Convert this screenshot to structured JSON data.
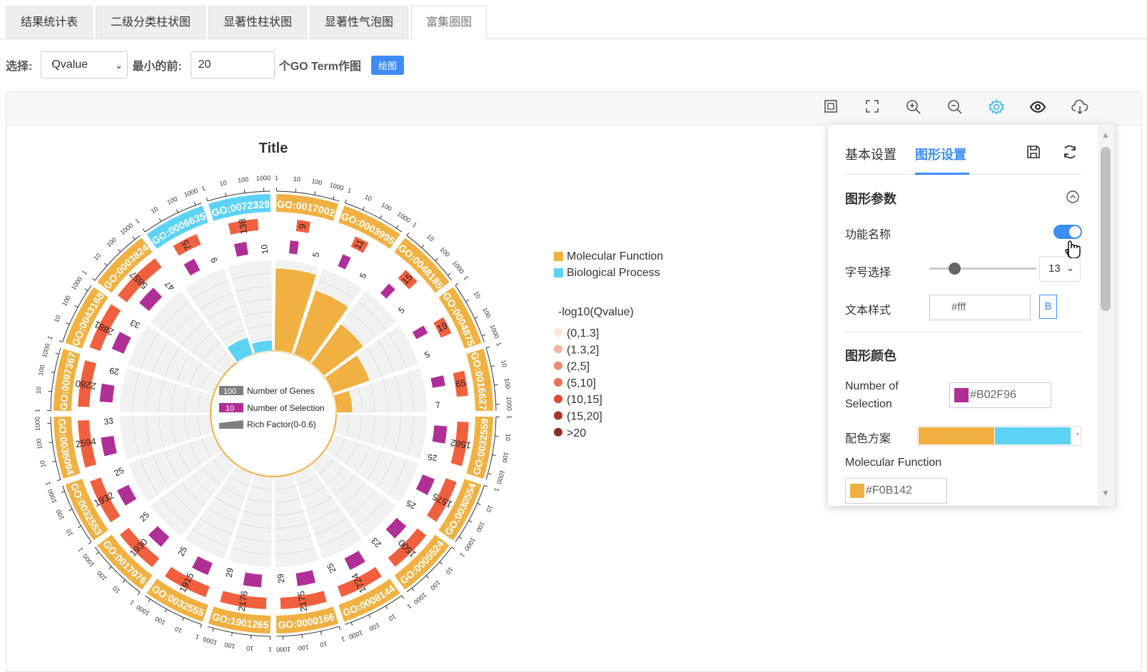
{
  "tabs": [
    "结果统计表",
    "二级分类柱状图",
    "显著性柱状图",
    "显著性气泡图",
    "富集圈图"
  ],
  "active_tab": 4,
  "controls": {
    "select_label": "选择:",
    "select_value": "Qvalue",
    "min_label": "最小的前:",
    "min_value": "20",
    "suffix": "个GO Term作图",
    "draw_button": "绘图"
  },
  "toolbar_icons": [
    "frame-icon",
    "fullscreen-icon",
    "zoom-in-icon",
    "zoom-out-icon",
    "settings-gear-icon",
    "eye-icon",
    "cloud-download-icon"
  ],
  "settings": {
    "tab_basic": "基本设置",
    "tab_graph": "图形设置",
    "section_params": "图形参数",
    "label_name": "功能名称",
    "name_toggle": true,
    "label_font": "字号选择",
    "font_size": "13",
    "label_textstyle": "文本样式",
    "text_color": "#fff",
    "bold_label": "B",
    "section_colors": "图形颜色",
    "label_selection": "Number of Selection",
    "selection_color": "#B02F96",
    "label_scheme": "配色方案",
    "scheme_colors": [
      "#F0B142",
      "#5CD3F5"
    ],
    "label_mf": "Molecular Function",
    "mf_color": "#F0B142"
  },
  "chart_data": {
    "type": "circos",
    "title": "Title",
    "terms": [
      {
        "id": "GO:0017002",
        "cat": "MF",
        "genes": 9,
        "sel": 5,
        "rich": 0.55
      },
      {
        "id": "GO:0003995",
        "cat": "MF",
        "genes": 11,
        "sel": 5,
        "rich": 0.45
      },
      {
        "id": "GO:0048185",
        "cat": "MF",
        "genes": 15,
        "sel": 5,
        "rich": 0.33
      },
      {
        "id": "GO:0004875",
        "cat": "MF",
        "genes": 19,
        "sel": 5,
        "rich": 0.26
      },
      {
        "id": "GO:0016627",
        "cat": "MF",
        "genes": 65,
        "sel": 7,
        "rich": 0.11
      },
      {
        "id": "GO:0032559",
        "cat": "MF",
        "genes": 1562,
        "sel": 25,
        "rich": 0.016
      },
      {
        "id": "GO:0030554",
        "cat": "MF",
        "genes": 1575,
        "sel": 25,
        "rich": 0.016
      },
      {
        "id": "GO:0005524",
        "cat": "MF",
        "genes": 1500,
        "sel": 23,
        "rich": 0.015
      },
      {
        "id": "GO:0008144",
        "cat": "MF",
        "genes": 1724,
        "sel": 25,
        "rich": 0.015
      },
      {
        "id": "GO:0000166",
        "cat": "MF",
        "genes": 2175,
        "sel": 29,
        "rich": 0.013
      },
      {
        "id": "GO:1901265",
        "cat": "MF",
        "genes": 2176,
        "sel": 29,
        "rich": 0.013
      },
      {
        "id": "GO:0032555",
        "cat": "MF",
        "genes": 1915,
        "sel": 25,
        "rich": 0.013
      },
      {
        "id": "GO:0017076",
        "cat": "MF",
        "genes": 1930,
        "sel": 25,
        "rich": 0.013
      },
      {
        "id": "GO:0032553",
        "cat": "MF",
        "genes": 1932,
        "sel": 25,
        "rich": 0.013
      },
      {
        "id": "GO:0036094",
        "cat": "MF",
        "genes": 2594,
        "sel": 33,
        "rich": 0.013
      },
      {
        "id": "GO:0097367",
        "cat": "MF",
        "genes": 2280,
        "sel": 29,
        "rich": 0.013
      },
      {
        "id": "GO:0043168",
        "cat": "MF",
        "genes": 2881,
        "sel": 33,
        "rich": 0.011
      },
      {
        "id": "GO:0003824",
        "cat": "MF",
        "genes": 5857,
        "sel": 47,
        "rich": 0.008
      },
      {
        "id": "GO:0006635",
        "cat": "BP",
        "genes": 75,
        "sel": 9,
        "rich": 0.12
      },
      {
        "id": "GO:0072329",
        "cat": "BP",
        "genes": 138,
        "sel": 10,
        "rich": 0.072
      }
    ],
    "center_legend": [
      "Number of Genes",
      "Number of Selection",
      "Rich Factor(0-0.6)"
    ],
    "center_legend_values": [
      "100",
      "10"
    ],
    "category_legend": [
      "Molecular Function",
      "Biological Process"
    ],
    "qvalue_title": "-log10(Qvalue)",
    "qvalue_bins": [
      "(0,1.3]",
      "(1.3,2]",
      "(2,5]",
      "(5,10]",
      "(10,15]",
      "(15,20]",
      ">20"
    ],
    "qvalue_colors": [
      "#FBE6DA",
      "#F3B3A0",
      "#F08C73",
      "#EC6F52",
      "#DE4A34",
      "#A93329",
      "#8E2A24"
    ],
    "colors": {
      "MF": "#F0B142",
      "BP": "#5CD3F5",
      "selection": "#B02F96",
      "genes": "#F0603F"
    },
    "ticks": [
      "1",
      "10",
      "100",
      "1000"
    ]
  }
}
